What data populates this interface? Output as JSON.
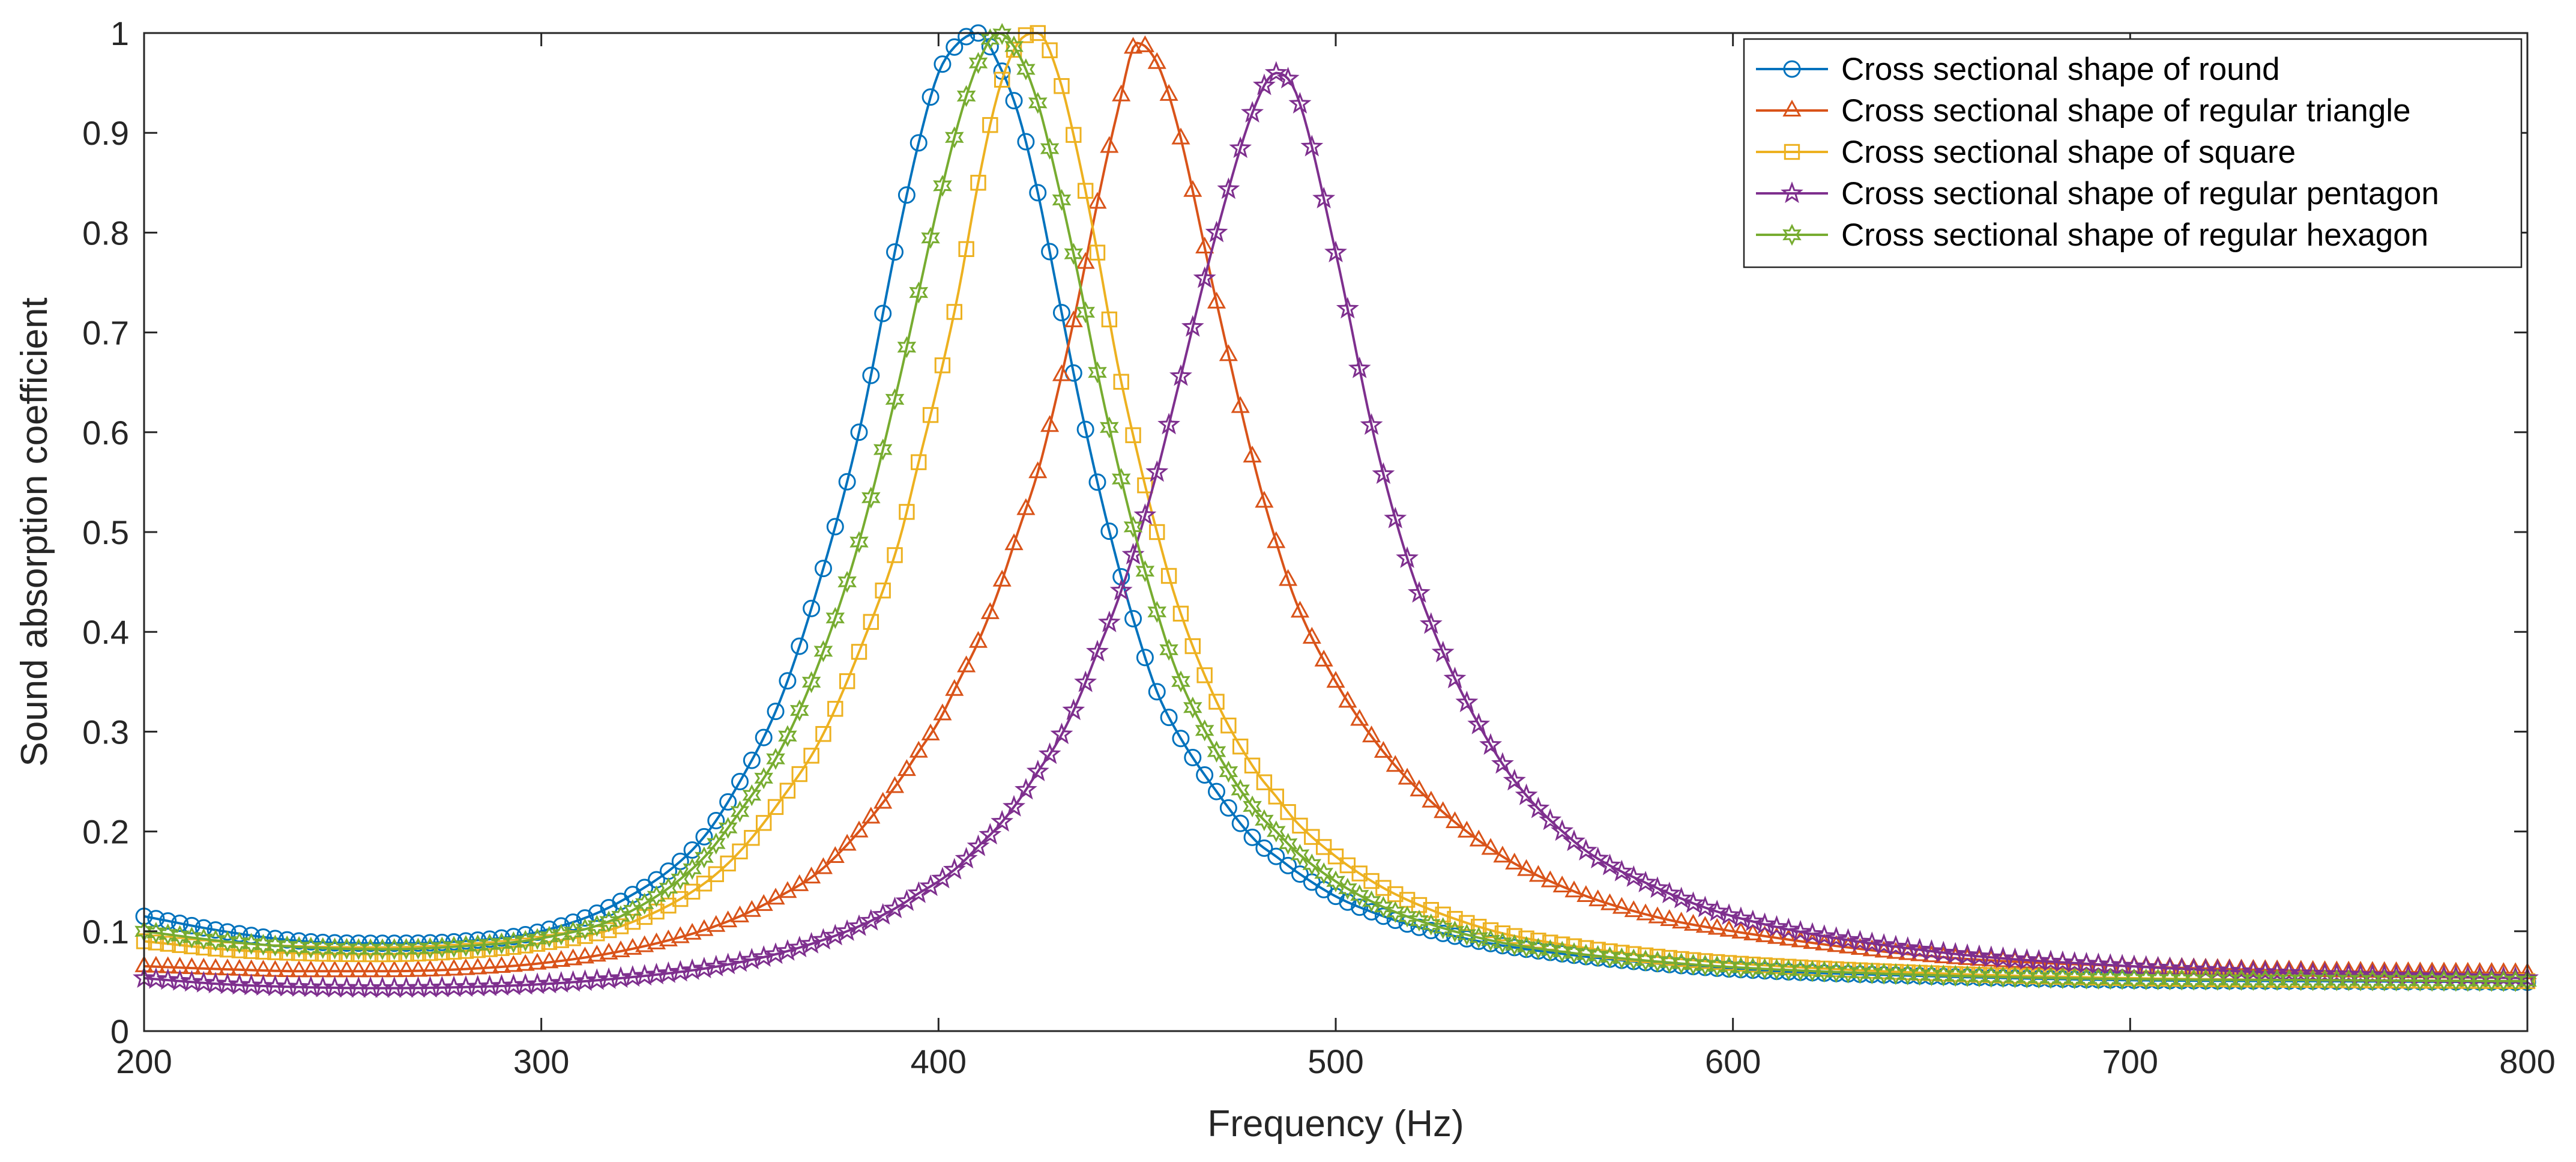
{
  "chart_data": {
    "type": "line",
    "title": "",
    "xlabel": "Frequency (Hz)",
    "ylabel": "Sound absorption coefficient",
    "xlim": [
      200,
      800
    ],
    "ylim": [
      0,
      1
    ],
    "xticks": [
      "200",
      "300",
      "400",
      "500",
      "600",
      "700",
      "800"
    ],
    "yticks": [
      "0",
      "0.1",
      "0.2",
      "0.3",
      "0.4",
      "0.5",
      "0.6",
      "0.7",
      "0.8",
      "0.9",
      "1"
    ],
    "grid": false,
    "legend_location": "top-right",
    "x": [
      200,
      220,
      240,
      260,
      280,
      300,
      320,
      340,
      350,
      360,
      370,
      380,
      390,
      395,
      400,
      405,
      410,
      415,
      420,
      425,
      430,
      435,
      440,
      445,
      450,
      455,
      460,
      470,
      480,
      485,
      490,
      500,
      510,
      520,
      540,
      560,
      580,
      600,
      650,
      700,
      750,
      800
    ],
    "series": [
      {
        "name": "Cross sectional shape of round",
        "color": "#0072BD",
        "marker": "circle",
        "peak_frequency": 409,
        "peak_value": 1.0,
        "values": [
          0.115,
          0.1,
          0.09,
          0.088,
          0.09,
          0.1,
          0.13,
          0.19,
          0.25,
          0.33,
          0.45,
          0.6,
          0.8,
          0.89,
          0.96,
          0.99,
          1.0,
          0.97,
          0.92,
          0.84,
          0.74,
          0.64,
          0.55,
          0.47,
          0.4,
          0.34,
          0.3,
          0.24,
          0.19,
          0.175,
          0.16,
          0.135,
          0.118,
          0.105,
          0.087,
          0.076,
          0.068,
          0.062,
          0.055,
          0.051,
          0.05,
          0.049
        ]
      },
      {
        "name": "Cross sectional shape of regular triangle",
        "color": "#D95319",
        "marker": "triangle",
        "peak_frequency": 450,
        "peak_value": 0.99,
        "values": [
          0.065,
          0.062,
          0.06,
          0.06,
          0.062,
          0.068,
          0.08,
          0.1,
          0.115,
          0.135,
          0.16,
          0.2,
          0.25,
          0.28,
          0.31,
          0.35,
          0.39,
          0.44,
          0.5,
          0.56,
          0.64,
          0.73,
          0.83,
          0.92,
          0.99,
          0.97,
          0.91,
          0.73,
          0.56,
          0.49,
          0.43,
          0.35,
          0.29,
          0.245,
          0.18,
          0.14,
          0.115,
          0.1,
          0.075,
          0.065,
          0.06,
          0.058
        ]
      },
      {
        "name": "Cross sectional shape of square",
        "color": "#EDB120",
        "marker": "square",
        "peak_frequency": 422,
        "peak_value": 1.0,
        "values": [
          0.09,
          0.082,
          0.078,
          0.077,
          0.08,
          0.088,
          0.105,
          0.145,
          0.18,
          0.23,
          0.29,
          0.38,
          0.49,
          0.57,
          0.65,
          0.74,
          0.85,
          0.94,
          0.99,
          1.0,
          0.96,
          0.88,
          0.78,
          0.67,
          0.58,
          0.5,
          0.43,
          0.33,
          0.26,
          0.235,
          0.21,
          0.175,
          0.148,
          0.128,
          0.1,
          0.085,
          0.075,
          0.068,
          0.058,
          0.053,
          0.051,
          0.05
        ]
      },
      {
        "name": "Cross sectional shape of regular pentagon",
        "color": "#7E2F8E",
        "marker": "star",
        "peak_frequency": 487,
        "peak_value": 0.96,
        "values": [
          0.053,
          0.047,
          0.044,
          0.043,
          0.044,
          0.047,
          0.053,
          0.062,
          0.069,
          0.078,
          0.09,
          0.105,
          0.125,
          0.138,
          0.15,
          0.165,
          0.185,
          0.205,
          0.23,
          0.26,
          0.29,
          0.33,
          0.38,
          0.43,
          0.49,
          0.56,
          0.64,
          0.8,
          0.93,
          0.96,
          0.94,
          0.78,
          0.59,
          0.45,
          0.28,
          0.19,
          0.145,
          0.115,
          0.08,
          0.065,
          0.057,
          0.053
        ]
      },
      {
        "name": "Cross sectional shape of regular hexagon",
        "color": "#77AC30",
        "marker": "hexagram",
        "peak_frequency": 414,
        "peak_value": 1.0,
        "values": [
          0.1,
          0.09,
          0.084,
          0.082,
          0.085,
          0.093,
          0.115,
          0.17,
          0.22,
          0.28,
          0.37,
          0.49,
          0.65,
          0.74,
          0.83,
          0.91,
          0.97,
          1.0,
          0.98,
          0.93,
          0.85,
          0.76,
          0.66,
          0.57,
          0.49,
          0.42,
          0.36,
          0.28,
          0.22,
          0.2,
          0.18,
          0.15,
          0.128,
          0.112,
          0.09,
          0.078,
          0.07,
          0.064,
          0.056,
          0.052,
          0.051,
          0.05
        ]
      }
    ]
  }
}
